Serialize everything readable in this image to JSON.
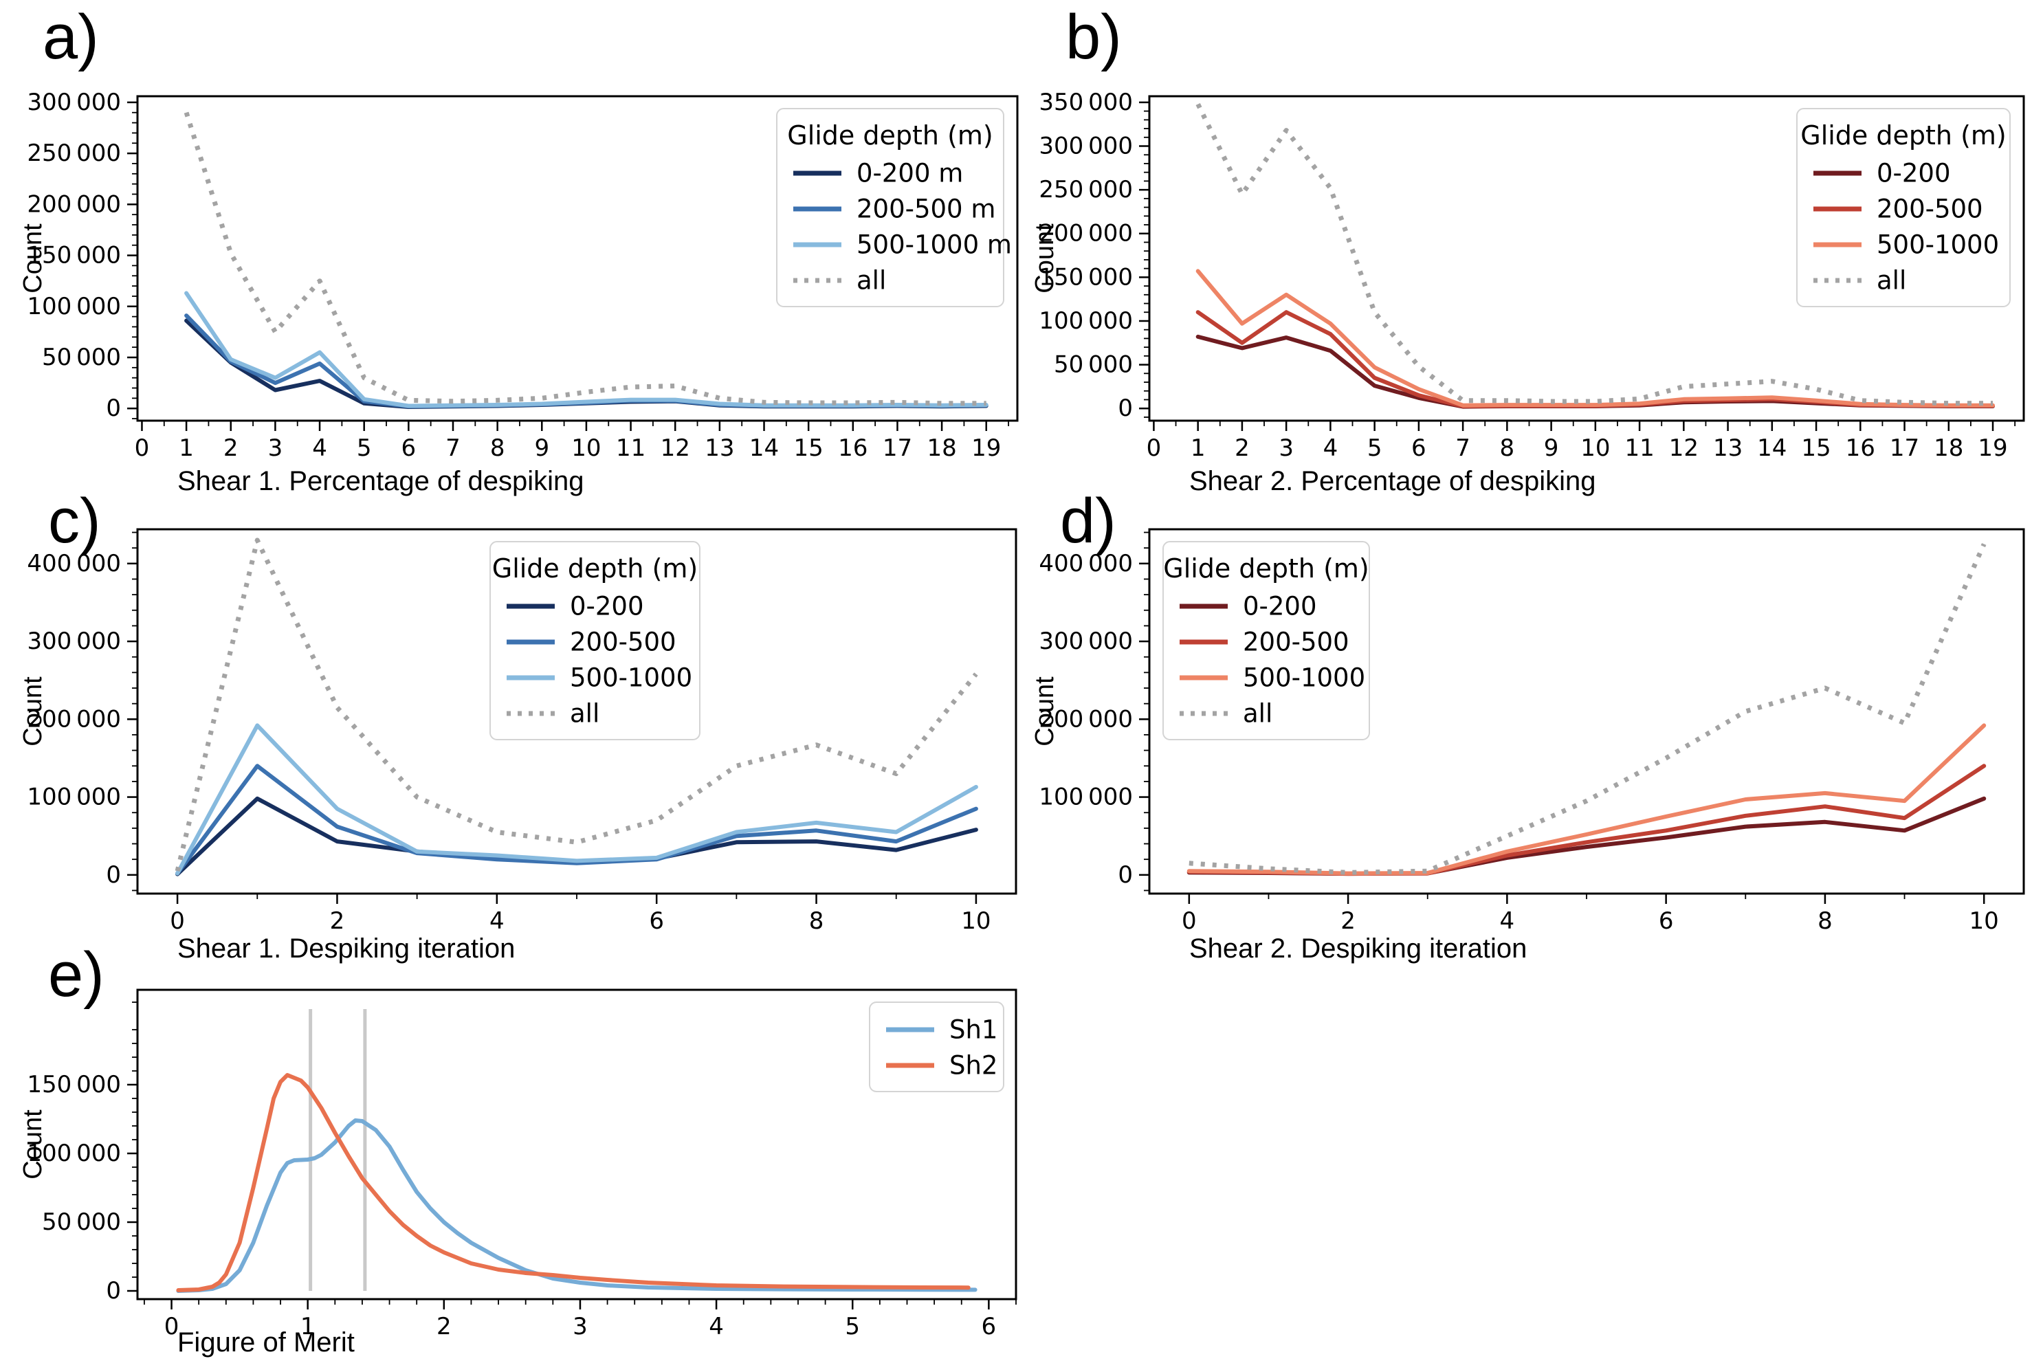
{
  "figure_title": "",
  "ylabel_all": "Count",
  "chart_data": [
    {
      "panel": "a",
      "letter": "a)",
      "type": "line",
      "xlabel": "Shear 1. Percentage of despiking",
      "ylabel": "Count",
      "xlim": [
        -0.1,
        19.7
      ],
      "ylim": [
        -12000,
        306000
      ],
      "xticks_major": [
        0,
        1,
        2,
        3,
        4,
        5,
        6,
        7,
        8,
        9,
        10,
        11,
        12,
        13,
        14,
        15,
        16,
        17,
        18,
        19
      ],
      "xticks_minor_step": 0.5,
      "yticks": {
        "major_step": 50000,
        "max": 300000,
        "minor_step": 10000
      },
      "grid": false,
      "legend": {
        "title": "Glide depth (m)",
        "position": "top-right"
      },
      "x": [
        1,
        2,
        3,
        4,
        5,
        6,
        7,
        8,
        9,
        10,
        11,
        12,
        13,
        14,
        15,
        16,
        17,
        18,
        19
      ],
      "series": [
        {
          "name": "0-200 m",
          "color": "#172f5e",
          "dash": false,
          "values": [
            86000,
            45000,
            18000,
            27000,
            5000,
            1500,
            2000,
            2500,
            3500,
            5000,
            6500,
            7000,
            3000,
            2000,
            2000,
            2000,
            2500,
            2000,
            2500
          ]
        },
        {
          "name": "200-500 m",
          "color": "#3c72b0",
          "dash": false,
          "values": [
            91000,
            46000,
            25000,
            44000,
            7000,
            2000,
            2500,
            3000,
            4000,
            5500,
            7500,
            7500,
            3500,
            2500,
            2500,
            2500,
            3000,
            2500,
            3000
          ]
        },
        {
          "name": "500-1000 m",
          "color": "#87bade",
          "dash": false,
          "values": [
            113000,
            48000,
            30000,
            55000,
            9000,
            2500,
            3000,
            3500,
            4500,
            6500,
            8500,
            8500,
            4500,
            3000,
            3000,
            3000,
            3500,
            3000,
            3500
          ]
        },
        {
          "name": "all",
          "color": "#a3a3a3",
          "dash": true,
          "values": [
            290000,
            152000,
            75000,
            125000,
            30000,
            8000,
            7000,
            8000,
            10000,
            16000,
            21000,
            22000,
            10000,
            6000,
            5500,
            5500,
            6000,
            5000,
            5000
          ]
        }
      ]
    },
    {
      "panel": "b",
      "letter": "b)",
      "type": "line",
      "xlabel": "Shear 2. Percentage of despiking",
      "ylabel": "Count",
      "xlim": [
        -0.1,
        19.7
      ],
      "ylim": [
        -14000,
        357000
      ],
      "xticks_major": [
        0,
        1,
        2,
        3,
        4,
        5,
        6,
        7,
        8,
        9,
        10,
        11,
        12,
        13,
        14,
        15,
        16,
        17,
        18,
        19
      ],
      "xticks_minor_step": 0.5,
      "yticks": {
        "major_step": 50000,
        "max": 350000,
        "minor_step": 10000
      },
      "grid": false,
      "legend": {
        "title": "Glide depth (m)",
        "position": "top-right"
      },
      "x": [
        1,
        2,
        3,
        4,
        5,
        6,
        7,
        8,
        9,
        10,
        11,
        12,
        13,
        14,
        15,
        16,
        17,
        18,
        19
      ],
      "series": [
        {
          "name": "0-200",
          "color": "#701c20",
          "dash": false,
          "values": [
            82000,
            69000,
            81000,
            66000,
            26000,
            12000,
            2000,
            2500,
            2500,
            2500,
            3500,
            7000,
            8000,
            8500,
            6000,
            3500,
            3000,
            2500,
            2500
          ]
        },
        {
          "name": "200-500",
          "color": "#bf4033",
          "dash": false,
          "values": [
            110000,
            75000,
            110000,
            85000,
            35000,
            15000,
            2500,
            3000,
            3000,
            3000,
            4500,
            8500,
            9500,
            10500,
            7500,
            4000,
            3500,
            3000,
            3000
          ]
        },
        {
          "name": "500-1000",
          "color": "#ee8465",
          "dash": false,
          "values": [
            157000,
            97000,
            130000,
            97000,
            47000,
            22000,
            3500,
            4000,
            4000,
            4000,
            5500,
            10500,
            11500,
            12500,
            9000,
            5000,
            4000,
            3500,
            3500
          ]
        },
        {
          "name": "all",
          "color": "#a3a3a3",
          "dash": true,
          "values": [
            348000,
            245000,
            318000,
            252000,
            110000,
            48000,
            9000,
            9000,
            8000,
            8000,
            11000,
            25000,
            28000,
            31000,
            22000,
            9000,
            7000,
            6000,
            6000
          ]
        }
      ]
    },
    {
      "panel": "c",
      "letter": "c)",
      "type": "line",
      "xlabel": "Shear 1. Despiking iteration",
      "ylabel": "Count",
      "xlim": [
        -0.5,
        10.5
      ],
      "ylim": [
        -24000,
        444000
      ],
      "xticks_major": [
        0,
        2,
        4,
        6,
        8,
        10
      ],
      "xticks_minor_step": 1,
      "yticks": {
        "major_step": 100000,
        "max": 400000,
        "minor_step": 20000
      },
      "grid": false,
      "legend": {
        "title": "Glide depth (m)",
        "position": "top-center-right"
      },
      "x": [
        0,
        1,
        2,
        3,
        4,
        5,
        6,
        7,
        8,
        9,
        10
      ],
      "series": [
        {
          "name": "0-200",
          "color": "#172f5e",
          "dash": false,
          "values": [
            1000,
            98000,
            43000,
            30000,
            22000,
            16000,
            21000,
            42000,
            43000,
            32000,
            58000
          ]
        },
        {
          "name": "200-500",
          "color": "#3c72b0",
          "dash": false,
          "values": [
            2000,
            140000,
            62000,
            28000,
            20000,
            15000,
            20000,
            50000,
            57000,
            43000,
            85000
          ]
        },
        {
          "name": "500-1000",
          "color": "#87bade",
          "dash": false,
          "values": [
            2000,
            192000,
            85000,
            30000,
            25000,
            18000,
            22000,
            55000,
            67000,
            55000,
            113000
          ]
        },
        {
          "name": "all",
          "color": "#a3a3a3",
          "dash": true,
          "values": [
            5000,
            430000,
            215000,
            100000,
            55000,
            42000,
            70000,
            140000,
            167000,
            130000,
            258000
          ]
        }
      ]
    },
    {
      "panel": "d",
      "letter": "d)",
      "type": "line",
      "xlabel": "Shear 2. Despiking iteration",
      "ylabel": "Count",
      "xlim": [
        -0.5,
        10.5
      ],
      "ylim": [
        -24000,
        444000
      ],
      "xticks_major": [
        0,
        2,
        4,
        6,
        8,
        10
      ],
      "xticks_minor_step": 1,
      "yticks": {
        "major_step": 100000,
        "max": 400000,
        "minor_step": 20000
      },
      "grid": false,
      "legend": {
        "title": "Glide depth (m)",
        "position": "top-left"
      },
      "x": [
        0,
        1,
        2,
        3,
        4,
        5,
        6,
        7,
        8,
        9,
        10
      ],
      "series": [
        {
          "name": "0-200",
          "color": "#701c20",
          "dash": false,
          "values": [
            3000,
            2500,
            1500,
            2000,
            22000,
            36000,
            48000,
            62000,
            68000,
            57000,
            98000
          ]
        },
        {
          "name": "200-500",
          "color": "#bf4033",
          "dash": false,
          "values": [
            4000,
            3000,
            1500,
            2000,
            25000,
            42000,
            57000,
            76000,
            88000,
            73000,
            140000
          ]
        },
        {
          "name": "500-1000",
          "color": "#ee8465",
          "dash": false,
          "values": [
            5000,
            4000,
            2000,
            2500,
            30000,
            52000,
            75000,
            97000,
            105000,
            95000,
            192000
          ]
        },
        {
          "name": "all",
          "color": "#a3a3a3",
          "dash": true,
          "values": [
            15000,
            8000,
            3000,
            5000,
            50000,
            95000,
            150000,
            210000,
            240000,
            195000,
            425000
          ]
        }
      ]
    },
    {
      "panel": "e",
      "letter": "e)",
      "type": "line",
      "xlabel": "Figure of Merit",
      "ylabel": "Count",
      "xlim": [
        -0.25,
        6.2
      ],
      "ylim": [
        -6000,
        219000
      ],
      "xticks_major": [
        0,
        1,
        2,
        3,
        4,
        5,
        6
      ],
      "xticks_minor_step": 0.2,
      "yticks": {
        "major_step": 50000,
        "max": 150000,
        "minor_step": 10000
      },
      "grid": false,
      "legend": {
        "title": "",
        "position": "top-right"
      },
      "vlines": [
        {
          "x": 1.02,
          "y0": 0,
          "y1": 205000,
          "color": "#c9c9c9"
        },
        {
          "x": 1.42,
          "y0": 0,
          "y1": 205000,
          "color": "#c9c9c9"
        }
      ],
      "series": [
        {
          "name": "Sh1",
          "color": "#75abd6",
          "dash": false,
          "x": [
            0.05,
            0.2,
            0.3,
            0.4,
            0.5,
            0.6,
            0.7,
            0.8,
            0.85,
            0.9,
            1.0,
            1.05,
            1.1,
            1.2,
            1.3,
            1.35,
            1.4,
            1.5,
            1.6,
            1.7,
            1.8,
            1.9,
            2.0,
            2.1,
            2.2,
            2.4,
            2.6,
            2.8,
            3.0,
            3.2,
            3.5,
            4.0,
            4.5,
            5.0,
            5.5,
            5.9
          ],
          "values": [
            0,
            500,
            1500,
            5000,
            15000,
            35000,
            62000,
            86000,
            93000,
            95000,
            95500,
            96500,
            99000,
            108000,
            120000,
            124000,
            123500,
            117000,
            105000,
            88000,
            72000,
            60000,
            50000,
            42000,
            35000,
            24000,
            15000,
            9000,
            6000,
            4000,
            2500,
            1500,
            1200,
            1000,
            900,
            800
          ]
        },
        {
          "name": "Sh2",
          "color": "#e8714e",
          "dash": false,
          "x": [
            0.05,
            0.2,
            0.3,
            0.35,
            0.4,
            0.5,
            0.6,
            0.7,
            0.75,
            0.8,
            0.85,
            0.9,
            0.95,
            1.0,
            1.1,
            1.2,
            1.3,
            1.4,
            1.5,
            1.6,
            1.7,
            1.8,
            1.9,
            2.0,
            2.2,
            2.4,
            2.6,
            2.8,
            3.0,
            3.2,
            3.5,
            4.0,
            4.5,
            5.0,
            5.5,
            5.85
          ],
          "values": [
            500,
            1000,
            3000,
            6000,
            12000,
            35000,
            75000,
            118000,
            140000,
            152000,
            157000,
            155000,
            153000,
            148000,
            133000,
            115000,
            98000,
            82000,
            70000,
            58000,
            48000,
            40000,
            33000,
            28000,
            20000,
            15500,
            13000,
            11500,
            9500,
            8000,
            6000,
            4000,
            3200,
            2800,
            2500,
            2400
          ]
        }
      ]
    }
  ]
}
